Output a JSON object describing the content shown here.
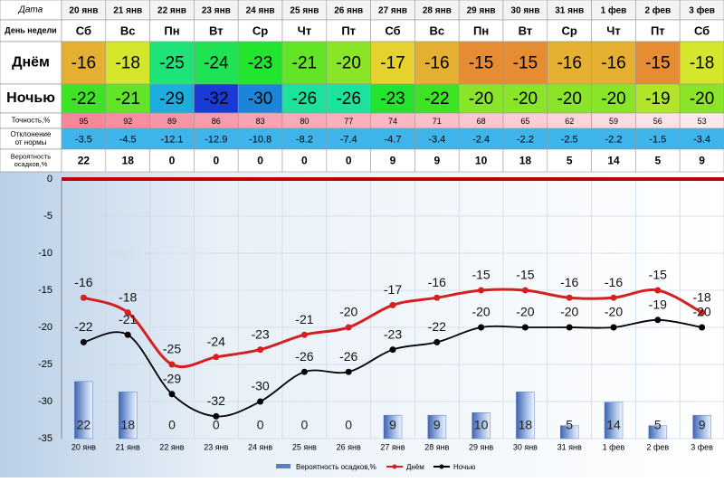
{
  "table": {
    "date_label": "Дата",
    "weekday_label": "День недели",
    "weekdays": [
      "Сб",
      "Вс",
      "Пн",
      "Вт",
      "Ср",
      "Чт",
      "Пт",
      "Сб",
      "Вс",
      "Пн",
      "Вт",
      "Ср",
      "Чт",
      "Пт",
      "Сб"
    ],
    "accuracy_label": "Точность,%",
    "accuracy": [
      95,
      92,
      89,
      86,
      83,
      80,
      77,
      74,
      71,
      68,
      65,
      62,
      59,
      56,
      53
    ],
    "deviation_label": "Отклонение от нормы",
    "deviation": [
      -3.5,
      -4.5,
      -12.1,
      -12.9,
      -10.8,
      -8.2,
      -7.4,
      -4.7,
      -3.4,
      -2.4,
      -2.2,
      -2.5,
      -2.2,
      -1.5,
      -3.4
    ]
  },
  "chart_data": {
    "type": "line",
    "categories": [
      "20 янв",
      "21 янв",
      "22 янв",
      "23 янв",
      "24 янв",
      "25 янв",
      "26 янв",
      "27 янв",
      "28 янв",
      "29 янв",
      "30 янв",
      "31 янв",
      "1 фев",
      "2 фев",
      "3 фев"
    ],
    "series": [
      {
        "name": "Вероятность осадков,%",
        "type": "bar",
        "axis": "y2",
        "color": "#5b7fc4",
        "values": [
          22,
          18,
          0,
          0,
          0,
          0,
          0,
          9,
          9,
          10,
          18,
          5,
          14,
          5,
          9
        ]
      },
      {
        "name": "Днём",
        "color": "#d42020",
        "values": [
          -16,
          -18,
          -25,
          -24,
          -23,
          -21,
          -20,
          -17,
          -16,
          -15,
          -15,
          -16,
          -16,
          -15,
          -18
        ]
      },
      {
        "name": "Ночью",
        "color": "#000000",
        "values": [
          -22,
          -21,
          -29,
          -32,
          -30,
          -26,
          -26,
          -23,
          -22,
          -20,
          -20,
          -20,
          -20,
          -19,
          -20
        ]
      }
    ],
    "ylim": [
      -35,
      0
    ],
    "yticks": [
      0,
      -5,
      -10,
      -15,
      -20,
      -25,
      -30,
      -35
    ],
    "y2lim": [
      0,
      100
    ],
    "grid": true
  }
}
